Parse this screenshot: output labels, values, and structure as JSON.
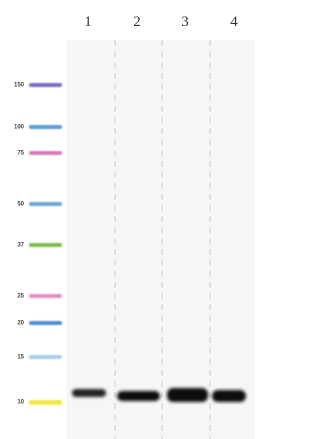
{
  "lanes": [
    "1",
    "2",
    "3",
    "4"
  ],
  "markers": [
    {
      "label": "150",
      "color": "#7a6cc4"
    },
    {
      "label": "100",
      "color": "#5b9bd8"
    },
    {
      "label": "75",
      "color": "#d67ab8"
    },
    {
      "label": "50",
      "color": "#6fa6d8"
    },
    {
      "label": "37",
      "color": "#7cc04a"
    },
    {
      "label": "25",
      "color": "#e58cc4"
    },
    {
      "label": "20",
      "color": "#4f8fd0"
    },
    {
      "label": "15",
      "color": "#a9cdeb"
    },
    {
      "label": "10",
      "color": "#f2e84a"
    }
  ]
}
